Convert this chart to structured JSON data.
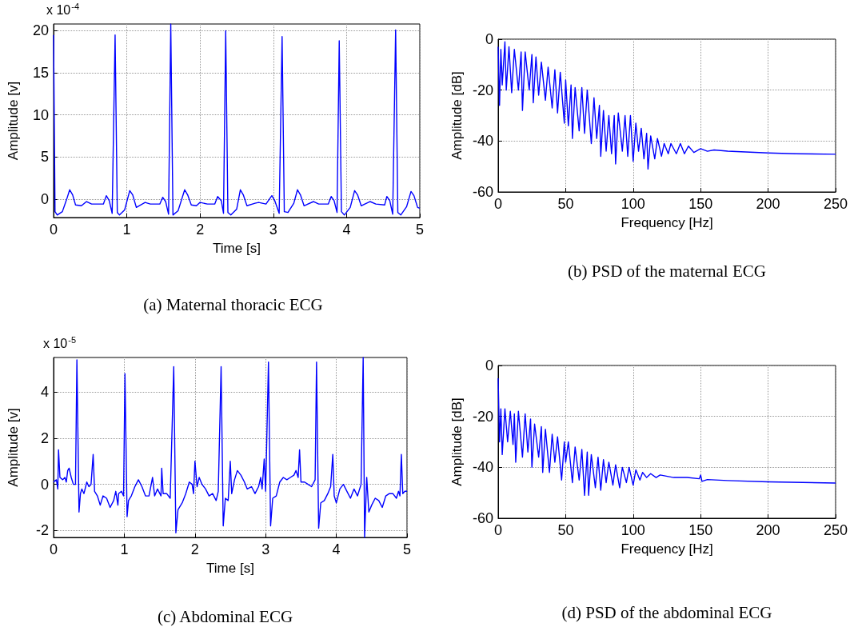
{
  "chart_data": [
    {
      "type": "line",
      "color": "#0000ff",
      "marker": "none",
      "grid": true,
      "xlabel": "Time [s]",
      "ylabel": "Amplitude [v]",
      "xlim": [
        0,
        5
      ],
      "ylim": [
        -2.2,
        20.8
      ],
      "xticks": [
        0,
        1,
        2,
        3,
        4,
        5
      ],
      "yticks": [
        0,
        5,
        10,
        15,
        20
      ],
      "annotations": [
        "x 10$^{-4}$",
        "(a) Maternal thoracic ECG"
      ],
      "x": [
        0,
        0.02,
        0.05,
        0.12,
        0.18,
        0.22,
        0.26,
        0.3,
        0.38,
        0.45,
        0.52,
        0.68,
        0.72,
        0.76,
        0.8,
        0.84,
        0.87,
        0.9,
        0.97,
        1.04,
        1.08,
        1.13,
        1.25,
        1.32,
        1.45,
        1.49,
        1.53,
        1.57,
        1.6,
        1.63,
        1.7,
        1.79,
        1.83,
        1.88,
        1.95,
        2.0,
        2.1,
        2.2,
        2.24,
        2.29,
        2.32,
        2.35,
        2.38,
        2.42,
        2.5,
        2.55,
        2.59,
        2.64,
        2.75,
        2.8,
        2.9,
        2.98,
        3.02,
        3.08,
        3.12,
        3.15,
        3.2,
        3.28,
        3.33,
        3.37,
        3.42,
        3.55,
        3.62,
        3.75,
        3.79,
        3.83,
        3.87,
        3.9,
        3.93,
        3.97,
        4.05,
        4.11,
        4.15,
        4.2,
        4.32,
        4.4,
        4.52,
        4.55,
        4.59,
        4.63,
        4.67,
        4.7,
        4.74,
        4.82,
        4.88,
        4.92,
        4.97,
        5
      ],
      "values": [
        19.5,
        -1.5,
        -1.9,
        -1.5,
        0,
        1.1,
        0.5,
        -0.7,
        -0.8,
        -0.3,
        -0.6,
        -0.6,
        0.4,
        -0.2,
        -1.7,
        19.5,
        -1.6,
        -1.9,
        -1.3,
        1.0,
        0.5,
        -1.0,
        -0.4,
        -0.6,
        -0.6,
        0.2,
        -0.3,
        -1.8,
        20.8,
        -1.9,
        -1.4,
        1.1,
        0.5,
        -0.7,
        -0.8,
        -0.4,
        -0.6,
        -0.6,
        0.3,
        -0.2,
        -1.7,
        20,
        -1.6,
        -1.9,
        -1.2,
        1.1,
        0.5,
        -0.8,
        -0.5,
        -0.4,
        -0.6,
        0.4,
        -0.2,
        -1.7,
        19.3,
        -1.5,
        -1.6,
        -0.5,
        1.1,
        0.5,
        -0.8,
        -0.3,
        -0.6,
        -0.6,
        0.3,
        -0.2,
        -1.6,
        18.8,
        -1.5,
        -1.9,
        -1.0,
        1.0,
        0.5,
        -0.8,
        -0.3,
        -0.6,
        -0.7,
        0.3,
        -0.2,
        -1.8,
        20.1,
        -1.6,
        -1.9,
        -0.9,
        0.9,
        0.4,
        -1,
        -1.1
      ]
    },
    {
      "type": "line",
      "color": "#0000ff",
      "marker": "none",
      "grid": true,
      "xlabel": "Frequency [Hz]",
      "ylabel": "Amplitude [dB]",
      "xlim": [
        0,
        250
      ],
      "ylim": [
        -60,
        0
      ],
      "xticks": [
        0,
        50,
        100,
        150,
        200,
        250
      ],
      "yticks": [
        -60,
        -40,
        -20,
        0
      ],
      "annotations": [
        "(b) PSD of the maternal ECG"
      ],
      "x": [
        0,
        1,
        2,
        3,
        5,
        6,
        8,
        10,
        12,
        15,
        17,
        18,
        20,
        23,
        25,
        26,
        28,
        30,
        32,
        35,
        37,
        40,
        42,
        44,
        46,
        49,
        50,
        52,
        54,
        55,
        57,
        60,
        62,
        64,
        66,
        69,
        71,
        73,
        75,
        76,
        78,
        80,
        82,
        84,
        86,
        87,
        89,
        92,
        94,
        96,
        98,
        100,
        102,
        104,
        106,
        108,
        110,
        111,
        113,
        116,
        118,
        121,
        123,
        126,
        128,
        132,
        135,
        138,
        141,
        145,
        150,
        155,
        160,
        170,
        180,
        200,
        220,
        250
      ],
      "values": [
        -3,
        -26,
        -4,
        -18,
        -1,
        -20,
        -3,
        -21,
        -4,
        -20,
        -5,
        -28,
        -5,
        -20,
        -6,
        -25,
        -7,
        -22,
        -9,
        -24,
        -11,
        -27,
        -12,
        -29,
        -13,
        -33,
        -16,
        -34,
        -18,
        -39,
        -19,
        -36,
        -19,
        -37,
        -20,
        -41,
        -23,
        -39,
        -26,
        -46,
        -28,
        -44,
        -30,
        -45,
        -30,
        -49,
        -29,
        -44,
        -30,
        -46,
        -30,
        -48,
        -33,
        -44,
        -35,
        -47,
        -37,
        -51,
        -38,
        -47,
        -39,
        -46,
        -41,
        -45,
        -41,
        -45,
        -41,
        -45,
        -42,
        -44.5,
        -43,
        -44,
        -43.5,
        -44,
        -44.2,
        -44.7,
        -45,
        -45.2
      ]
    },
    {
      "type": "line",
      "color": "#0000ff",
      "marker": "none",
      "grid": true,
      "xlabel": "Time [s]",
      "ylabel": "Amplitude [v]",
      "xlim": [
        0,
        5
      ],
      "ylim": [
        -2.3,
        5.5
      ],
      "xticks": [
        0,
        1,
        2,
        3,
        4,
        5
      ],
      "yticks": [
        -2,
        0,
        2,
        4
      ],
      "annotations": [
        "x 10$^{-5}$",
        "(c) Abdominal ECG"
      ],
      "x": [
        0,
        0.04,
        0.06,
        0.07,
        0.09,
        0.13,
        0.16,
        0.18,
        0.2,
        0.22,
        0.25,
        0.28,
        0.31,
        0.33,
        0.36,
        0.38,
        0.4,
        0.43,
        0.47,
        0.5,
        0.53,
        0.56,
        0.58,
        0.62,
        0.66,
        0.7,
        0.75,
        0.8,
        0.85,
        0.88,
        0.91,
        0.92,
        0.96,
        0.99,
        1.01,
        1.04,
        1.06,
        1.1,
        1.15,
        1.2,
        1.25,
        1.3,
        1.35,
        1.4,
        1.43,
        1.47,
        1.52,
        1.53,
        1.55,
        1.6,
        1.65,
        1.7,
        1.73,
        1.76,
        1.82,
        1.87,
        1.92,
        1.96,
        1.98,
        2.0,
        2.03,
        2.06,
        2.1,
        2.15,
        2.2,
        2.25,
        2.3,
        2.33,
        2.37,
        2.4,
        2.43,
        2.47,
        2.5,
        2.52,
        2.56,
        2.6,
        2.65,
        2.7,
        2.74,
        2.8,
        2.85,
        2.9,
        2.93,
        2.95,
        2.98,
        3.0,
        3.04,
        3.07,
        3.1,
        3.15,
        3.2,
        3.25,
        3.3,
        3.35,
        3.4,
        3.43,
        3.46,
        3.48,
        3.5,
        3.55,
        3.6,
        3.65,
        3.7,
        3.72,
        3.75,
        3.78,
        3.83,
        3.88,
        3.92,
        3.95,
        3.97,
        4.0,
        4.05,
        4.1,
        4.15,
        4.2,
        4.25,
        4.3,
        4.35,
        4.38,
        4.4,
        4.43,
        4.46,
        4.5,
        4.55,
        4.6,
        4.65,
        4.7,
        4.75,
        4.8,
        4.85,
        4.88,
        4.9,
        4.92,
        4.94,
        4.97,
        5
      ],
      "values": [
        0.1,
        0.2,
        -0.2,
        1.5,
        0.3,
        0.2,
        0.3,
        0.1,
        0.6,
        0.7,
        0.3,
        0,
        0,
        5.4,
        -1.2,
        -0.4,
        -0.2,
        -0.4,
        0.1,
        -0.1,
        0,
        1.3,
        -0.3,
        -0.5,
        -0.9,
        -0.5,
        -0.6,
        -1.0,
        -0.7,
        -0.3,
        -0.9,
        -0.4,
        -0.3,
        -0.5,
        4.8,
        -1.4,
        -0.7,
        -0.5,
        -0.1,
        0.2,
        -0.1,
        -0.5,
        -0.5,
        0.3,
        -0.5,
        -0.2,
        -0.5,
        0.7,
        -0.4,
        -0.4,
        -0.6,
        5.1,
        -2.1,
        -1.1,
        -0.8,
        -0.4,
        0.1,
        0,
        -0.4,
        1.0,
        -0.1,
        0.3,
        0,
        -0.2,
        -0.5,
        -0.4,
        -0.7,
        -0.3,
        5.1,
        -1.8,
        -0.6,
        -0.7,
        1.0,
        -0.4,
        0.2,
        0.6,
        0.4,
        0.1,
        -0.2,
        -0.1,
        -0.4,
        -0.1,
        0.3,
        -0.2,
        1.1,
        -0.3,
        5.3,
        -1.8,
        -0.6,
        -0.5,
        0.1,
        0.3,
        0.2,
        0.3,
        0.4,
        0.6,
        0.3,
        1.5,
        0.1,
        0.1,
        0,
        -0.1,
        0.2,
        5.3,
        -1.9,
        -0.8,
        -0.7,
        -0.4,
        -0.1,
        1.3,
        -0.5,
        -0.8,
        -0.2,
        0,
        -0.3,
        -0.6,
        -0.2,
        -0.5,
        0,
        5.5,
        -2.3,
        0.3,
        -1.2,
        -0.9,
        -0.6,
        -0.7,
        -1.0,
        -0.5,
        -0.4,
        -0.4,
        -0.6,
        -0.3,
        -0.5,
        1.3,
        -0.4,
        -0.3,
        -0.3
      ]
    },
    {
      "type": "line",
      "color": "#0000ff",
      "marker": "none",
      "grid": true,
      "xlabel": "Frequency [Hz]",
      "ylabel": "Amplitude [dB]",
      "xlim": [
        0,
        250
      ],
      "ylim": [
        -60,
        0
      ],
      "xticks": [
        0,
        50,
        100,
        150,
        200,
        250
      ],
      "yticks": [
        -60,
        -40,
        -20,
        0
      ],
      "annotations": [
        "(d) PSD of the abdominal ECG"
      ],
      "x": [
        0,
        1,
        2,
        3,
        5,
        7,
        9,
        11,
        12,
        13,
        15,
        18,
        20,
        22,
        24,
        25,
        27,
        30,
        32,
        33,
        35,
        38,
        40,
        42,
        44,
        47,
        49,
        50,
        52,
        55,
        57,
        60,
        62,
        64,
        66,
        67,
        69,
        72,
        74,
        76,
        78,
        80,
        82,
        85,
        87,
        90,
        92,
        95,
        97,
        100,
        102,
        105,
        107,
        110,
        113,
        117,
        120,
        130,
        140,
        149,
        150,
        151,
        155,
        170,
        200,
        250
      ],
      "values": [
        -5,
        -30,
        -17,
        -35,
        -17,
        -30,
        -18,
        -31,
        -19,
        -38,
        -18,
        -36,
        -19,
        -34,
        -21,
        -40,
        -23,
        -36,
        -24,
        -42,
        -25,
        -42,
        -27,
        -38,
        -28,
        -45,
        -30,
        -38,
        -30,
        -46,
        -32,
        -45,
        -33,
        -51,
        -34,
        -51,
        -35,
        -48,
        -36,
        -49,
        -37,
        -46,
        -38,
        -47,
        -39,
        -48,
        -40,
        -46,
        -40,
        -47,
        -41,
        -45,
        -42,
        -44,
        -42.5,
        -44,
        -43,
        -44,
        -44,
        -44.5,
        -43,
        -45.5,
        -44.8,
        -45.2,
        -45.7,
        -46.2
      ]
    }
  ]
}
